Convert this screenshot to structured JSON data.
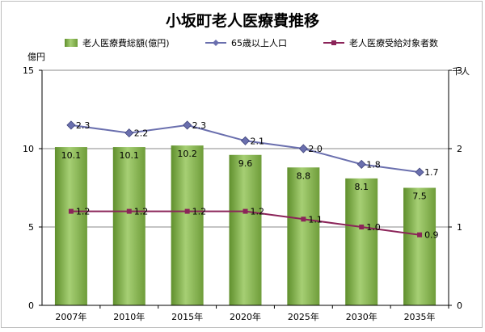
{
  "chart_data": {
    "type": "bar",
    "title": "小坂町老人医療費推移",
    "categories": [
      "2007年",
      "2010年",
      "2015年",
      "2020年",
      "2025年",
      "2030年",
      "2035年"
    ],
    "y_left": {
      "label": "億円",
      "range": [
        0,
        15
      ],
      "ticks": [
        "0",
        "5",
        "10",
        "15"
      ]
    },
    "y_right": {
      "label": "千人",
      "range": [
        0,
        3
      ],
      "ticks": [
        "0",
        "1",
        "2",
        "3"
      ]
    },
    "grid": true,
    "legend_position": "top",
    "series": [
      {
        "name": "老人医療費総額(億円)",
        "type": "bar",
        "axis": "left",
        "color": "#8db85a",
        "values": [
          10.1,
          10.1,
          10.2,
          9.6,
          8.8,
          8.1,
          7.5
        ],
        "labels": [
          "10.1",
          "10.1",
          "10.2",
          "9.6",
          "8.8",
          "8.1",
          "7.5"
        ]
      },
      {
        "name": "65歳以上人口",
        "type": "line",
        "axis": "right",
        "color": "#6a6fae",
        "marker": "diamond",
        "values": [
          2.3,
          2.2,
          2.3,
          2.1,
          2.0,
          1.8,
          1.7
        ],
        "labels": [
          "2.3",
          "2.2",
          "2.3",
          "2.1",
          "2.0",
          "1.8",
          "1.7"
        ]
      },
      {
        "name": "老人医療受給対象者数",
        "type": "line",
        "axis": "right",
        "color": "#8b2459",
        "marker": "square",
        "values": [
          1.2,
          1.2,
          1.2,
          1.2,
          1.1,
          1.0,
          0.9
        ],
        "labels": [
          "1.2",
          "1.2",
          "1.2",
          "1.2",
          "1.1",
          "1.0",
          "0.9"
        ]
      }
    ]
  }
}
